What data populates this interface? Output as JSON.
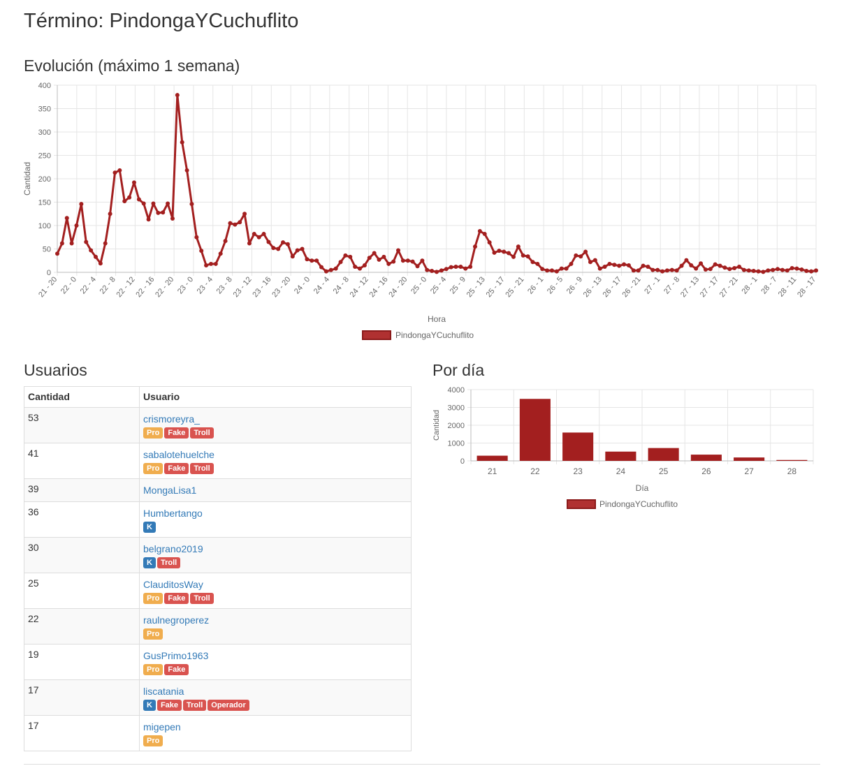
{
  "page": {
    "title": "Término: PindongaYCuchuflito"
  },
  "evolution": {
    "heading": "Evolución (máximo 1 semana)",
    "chart_data": {
      "type": "line",
      "xlabel": "Hora",
      "ylabel": "Cantidad",
      "ylim": [
        0,
        400
      ],
      "yticks": [
        0,
        50,
        100,
        150,
        200,
        250,
        300,
        350,
        400
      ],
      "grid": true,
      "legend_position": "bottom",
      "tick_labels": [
        "21 - 20",
        "22 - 0",
        "22 - 4",
        "22 - 8",
        "22 - 12",
        "22 - 16",
        "22 - 20",
        "23 - 0",
        "23 - 4",
        "23 - 8",
        "23 - 12",
        "23 - 16",
        "23 - 20",
        "24 - 0",
        "24 - 4",
        "24 - 8",
        "24 - 12",
        "24 - 16",
        "24 - 20",
        "25 - 0",
        "25 - 4",
        "25 - 9",
        "25 - 13",
        "25 - 17",
        "25 - 21",
        "26 - 1",
        "26 - 5",
        "26 - 9",
        "26 - 13",
        "26 - 17",
        "26 - 21",
        "27 - 1",
        "27 - 8",
        "27 - 13",
        "27 - 17",
        "27 - 21",
        "28 - 1",
        "28 - 7",
        "28 - 11",
        "28 - 17"
      ],
      "series": [
        {
          "name": "PindongaYCuchuflito",
          "color": "#a31f1f",
          "values": [
            40,
            62,
            116,
            62,
            100,
            146,
            65,
            47,
            33,
            19,
            62,
            125,
            213,
            218,
            152,
            160,
            192,
            156,
            147,
            113,
            147,
            127,
            128,
            147,
            115,
            379,
            278,
            218,
            146,
            75,
            46,
            15,
            18,
            18,
            40,
            67,
            105,
            102,
            107,
            125,
            62,
            82,
            75,
            82,
            65,
            52,
            50,
            64,
            60,
            34,
            47,
            50,
            28,
            25,
            25,
            11,
            2,
            5,
            8,
            22,
            36,
            33,
            12,
            8,
            15,
            31,
            41,
            27,
            33,
            18,
            23,
            47,
            25,
            25,
            23,
            13,
            25,
            5,
            3,
            1,
            4,
            7,
            11,
            12,
            12,
            8,
            12,
            55,
            88,
            82,
            64,
            42,
            46,
            44,
            41,
            33,
            55,
            36,
            34,
            22,
            18,
            7,
            4,
            4,
            2,
            8,
            8,
            18,
            36,
            34,
            44,
            22,
            26,
            8,
            12,
            18,
            16,
            14,
            17,
            15,
            4,
            4,
            14,
            12,
            5,
            5,
            2,
            4,
            5,
            4,
            14,
            26,
            15,
            8,
            19,
            6,
            7,
            17,
            14,
            10,
            7,
            9,
            12,
            5,
            4,
            3,
            2,
            1,
            4,
            5,
            7,
            5,
            4,
            9,
            8,
            6,
            3,
            2,
            4
          ]
        }
      ]
    }
  },
  "users": {
    "heading": "Usuarios",
    "columns": [
      "Cantidad",
      "Usuario"
    ],
    "rows": [
      {
        "count": "53",
        "user": "crismoreyra_",
        "badges": [
          "Pro",
          "Fake",
          "Troll"
        ]
      },
      {
        "count": "41",
        "user": "sabalotehuelche",
        "badges": [
          "Pro",
          "Fake",
          "Troll"
        ]
      },
      {
        "count": "39",
        "user": "MongaLisa1",
        "badges": []
      },
      {
        "count": "36",
        "user": "Humbertango",
        "badges": [
          "K"
        ]
      },
      {
        "count": "30",
        "user": "belgrano2019",
        "badges": [
          "K",
          "Troll"
        ]
      },
      {
        "count": "25",
        "user": "ClauditosWay",
        "badges": [
          "Pro",
          "Fake",
          "Troll"
        ]
      },
      {
        "count": "22",
        "user": "raulnegroperez",
        "badges": [
          "Pro"
        ]
      },
      {
        "count": "19",
        "user": "GusPrimo1963",
        "badges": [
          "Pro",
          "Fake"
        ]
      },
      {
        "count": "17",
        "user": "liscatania",
        "badges": [
          "K",
          "Fake",
          "Troll",
          "Operador"
        ]
      },
      {
        "count": "17",
        "user": "migepen",
        "badges": [
          "Pro"
        ]
      }
    ],
    "badge_colors": {
      "Pro": "#f0ad4e",
      "Fake": "#d9534f",
      "Troll": "#d9534f",
      "Operador": "#d9534f",
      "K": "#337ab7"
    }
  },
  "per_day": {
    "heading": "Por día",
    "chart_data": {
      "type": "bar",
      "xlabel": "Día",
      "ylabel": "Cantidad",
      "ylim": [
        0,
        4000
      ],
      "yticks": [
        0,
        1000,
        2000,
        3000,
        4000
      ],
      "grid": true,
      "legend_position": "bottom",
      "categories": [
        "21",
        "22",
        "23",
        "24",
        "25",
        "26",
        "27",
        "28"
      ],
      "series": [
        {
          "name": "PindongaYCuchuflito",
          "color": "#a31f1f",
          "values": [
            290,
            3480,
            1590,
            520,
            720,
            350,
            190,
            50
          ]
        }
      ]
    }
  }
}
